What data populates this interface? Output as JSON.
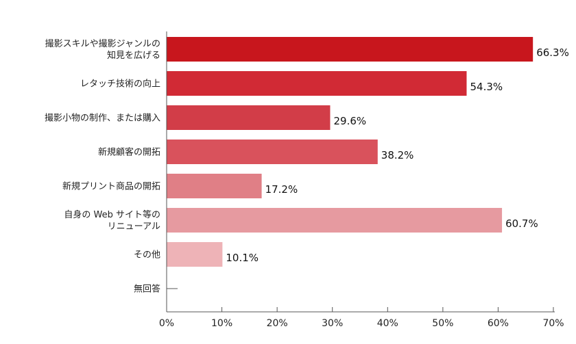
{
  "chart_data": {
    "type": "bar",
    "orientation": "horizontal",
    "categories": [
      [
        "撮影スキルや撮影ジャンルの",
        "知見を広げる"
      ],
      [
        "レタッチ技術の向上"
      ],
      [
        "撮影小物の制作、または購入"
      ],
      [
        "新規顧客の開拓"
      ],
      [
        "新規プリント商品の開拓"
      ],
      [
        "自身の Web サイト等の",
        "リニューアル"
      ],
      [
        "その他"
      ],
      [
        "無回答"
      ]
    ],
    "values": [
      66.3,
      54.3,
      29.6,
      38.2,
      17.2,
      60.7,
      10.1,
      0
    ],
    "value_labels": [
      "66.3%",
      "54.3%",
      "29.6%",
      "38.2%",
      "17.2%",
      "60.7%",
      "10.1%",
      ""
    ],
    "bar_colors": [
      "#c8161d",
      "#d12a35",
      "#d23d48",
      "#d9525c",
      "#e07f86",
      "#e69aa0",
      "#eeb3b7",
      "#f2c4c7"
    ],
    "xlim": [
      0,
      70
    ],
    "x_ticks": [
      0,
      10,
      20,
      30,
      40,
      50,
      60,
      70
    ],
    "x_tick_labels": [
      "0%",
      "10%",
      "20%",
      "30%",
      "40%",
      "50%",
      "60%",
      "70%"
    ],
    "grid": false,
    "title": "",
    "xlabel": "",
    "ylabel": ""
  }
}
